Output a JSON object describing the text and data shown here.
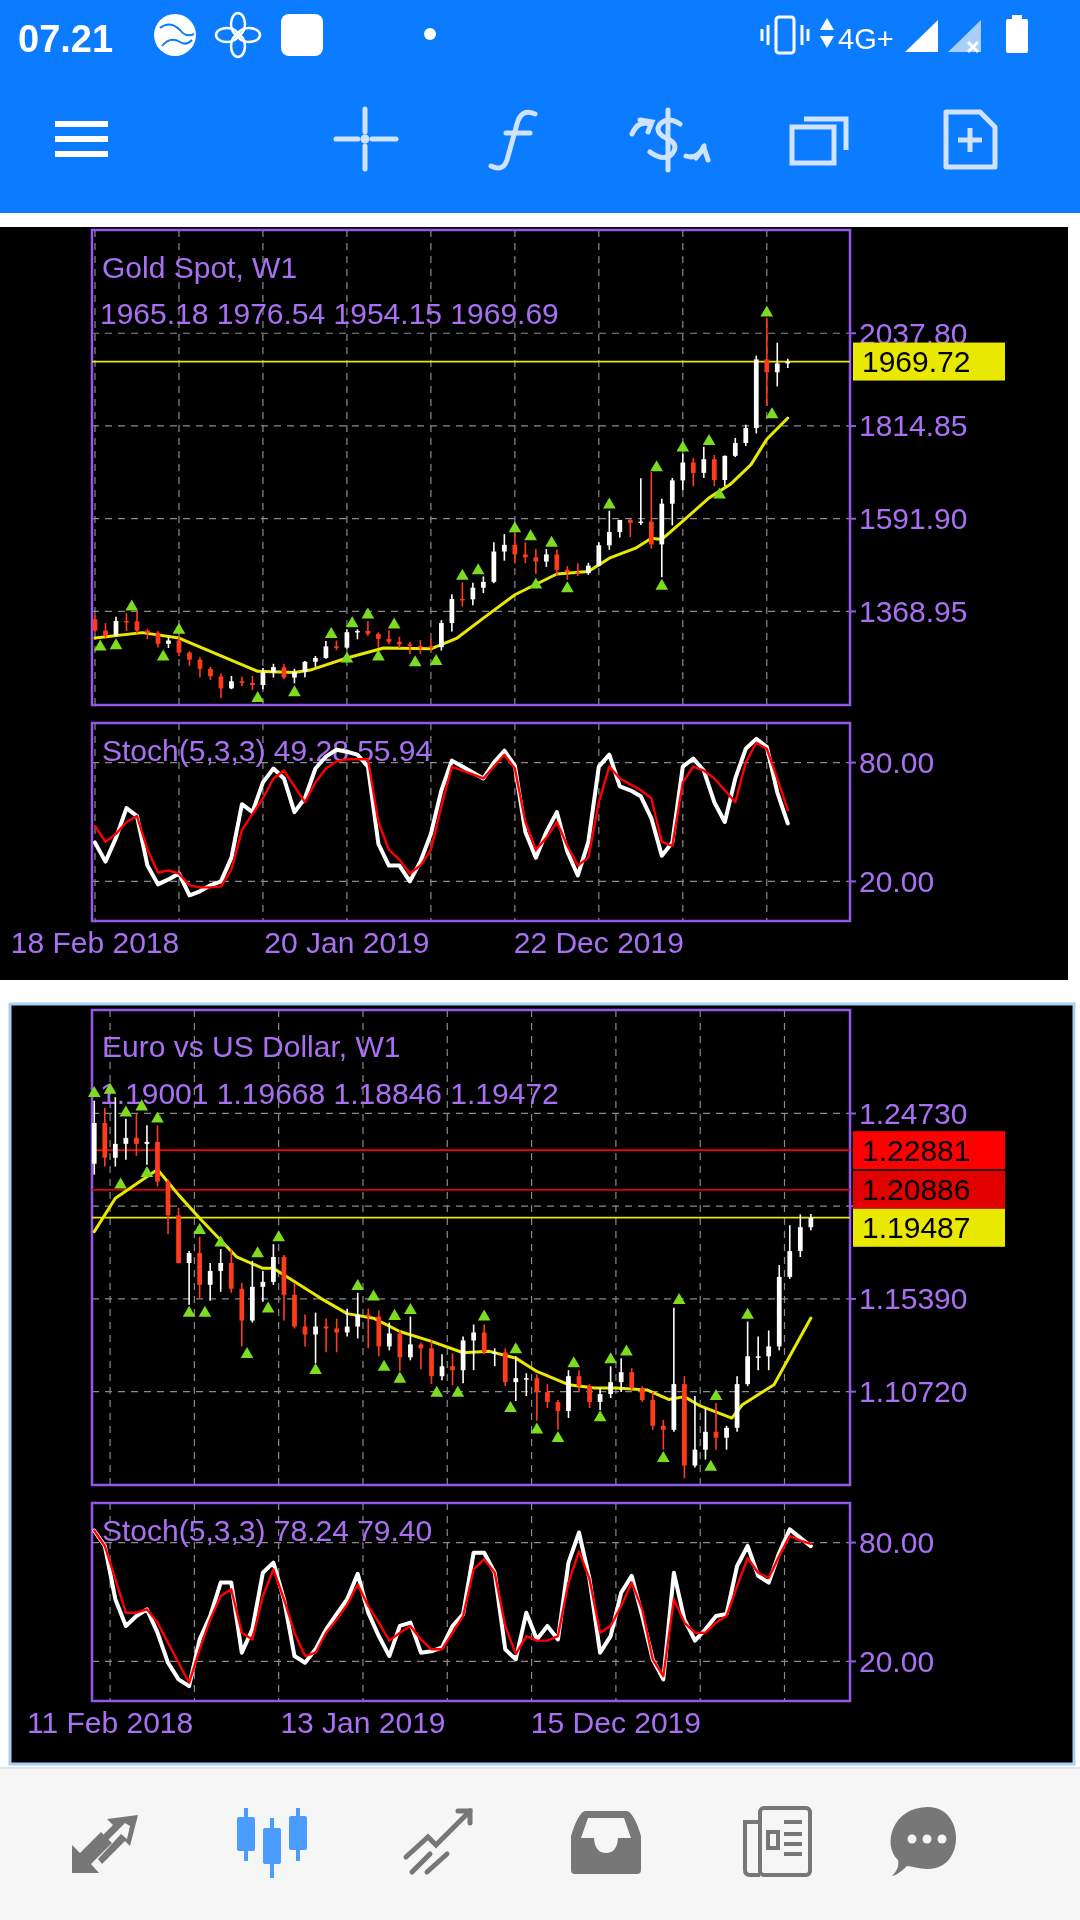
{
  "chart_data": [
    {
      "type": "candlestick",
      "title": "Gold Spot, W1",
      "subtitle": "1965.18 1976.54 1954.15 1969.69",
      "annotations": [
        "07.21",
        "4G+"
      ],
      "x": [
        "2018-02-18",
        "2018-03-04",
        "2018-03-18",
        "2018-04-01",
        "2018-04-15",
        "2018-04-29",
        "2018-05-13",
        "2018-05-27",
        "2018-06-10",
        "2018-06-24",
        "2018-07-08",
        "2018-07-22",
        "2018-08-05",
        "2018-08-19",
        "2018-09-02",
        "2018-09-16",
        "2018-09-30",
        "2018-10-14",
        "2018-10-28",
        "2018-11-11",
        "2018-11-25",
        "2018-12-09",
        "2018-12-23",
        "2019-01-06",
        "2019-01-20",
        "2019-02-03",
        "2019-02-17",
        "2019-03-03",
        "2019-03-17",
        "2019-03-31",
        "2019-04-14",
        "2019-04-28",
        "2019-05-12",
        "2019-05-26",
        "2019-06-09",
        "2019-06-23",
        "2019-07-07",
        "2019-07-21",
        "2019-08-04",
        "2019-08-18",
        "2019-09-01",
        "2019-09-15",
        "2019-09-29",
        "2019-10-13",
        "2019-10-27",
        "2019-11-10",
        "2019-11-24",
        "2019-12-08",
        "2019-12-22",
        "2020-01-05",
        "2020-01-19",
        "2020-02-02",
        "2020-02-16",
        "2020-03-01",
        "2020-03-15",
        "2020-03-29",
        "2020-04-12",
        "2020-04-26",
        "2020-05-10",
        "2020-05-24",
        "2020-06-07",
        "2020-06-21",
        "2020-07-05",
        "2020-07-19",
        "2020-08-02",
        "2020-08-16",
        "2020-08-30"
      ],
      "ohlc": [
        [
          1350,
          1362,
          1318,
          1323
        ],
        [
          1323,
          1341,
          1303,
          1311
        ],
        [
          1311,
          1356,
          1310,
          1346
        ],
        [
          1346,
          1365,
          1322,
          1345
        ],
        [
          1345,
          1369,
          1316,
          1323
        ],
        [
          1323,
          1327,
          1302,
          1318
        ],
        [
          1318,
          1322,
          1282,
          1291
        ],
        [
          1291,
          1308,
          1281,
          1299
        ],
        [
          1299,
          1309,
          1262,
          1270
        ],
        [
          1270,
          1273,
          1238,
          1253
        ],
        [
          1253,
          1259,
          1210,
          1231
        ],
        [
          1231,
          1236,
          1204,
          1213
        ],
        [
          1213,
          1220,
          1160,
          1184
        ],
        [
          1184,
          1214,
          1182,
          1201
        ],
        [
          1201,
          1212,
          1189,
          1197
        ],
        [
          1197,
          1214,
          1180,
          1192
        ],
        [
          1192,
          1233,
          1182,
          1222
        ],
        [
          1222,
          1243,
          1210,
          1235
        ],
        [
          1235,
          1243,
          1206,
          1210
        ],
        [
          1210,
          1231,
          1196,
          1223
        ],
        [
          1223,
          1250,
          1211,
          1248
        ],
        [
          1248,
          1262,
          1236,
          1257
        ],
        [
          1257,
          1298,
          1255,
          1285
        ],
        [
          1285,
          1299,
          1276,
          1282
        ],
        [
          1282,
          1326,
          1279,
          1319
        ],
        [
          1319,
          1326,
          1302,
          1322
        ],
        [
          1322,
          1346,
          1310,
          1315
        ],
        [
          1315,
          1319,
          1281,
          1303
        ],
        [
          1303,
          1324,
          1290,
          1296
        ],
        [
          1296,
          1308,
          1281,
          1290
        ],
        [
          1290,
          1296,
          1266,
          1286
        ],
        [
          1286,
          1300,
          1267,
          1285
        ],
        [
          1285,
          1304,
          1274,
          1283
        ],
        [
          1283,
          1348,
          1275,
          1341
        ],
        [
          1341,
          1410,
          1321,
          1399
        ],
        [
          1399,
          1439,
          1381,
          1398
        ],
        [
          1398,
          1438,
          1384,
          1426
        ],
        [
          1426,
          1453,
          1413,
          1440
        ],
        [
          1440,
          1535,
          1437,
          1513
        ],
        [
          1513,
          1555,
          1491,
          1529
        ],
        [
          1529,
          1557,
          1484,
          1506
        ],
        [
          1506,
          1535,
          1485,
          1499
        ],
        [
          1499,
          1519,
          1459,
          1489
        ],
        [
          1489,
          1519,
          1476,
          1506
        ],
        [
          1506,
          1518,
          1456,
          1469
        ],
        [
          1469,
          1478,
          1445,
          1463
        ],
        [
          1463,
          1485,
          1454,
          1461
        ],
        [
          1461,
          1486,
          1457,
          1479
        ],
        [
          1479,
          1535,
          1477,
          1528
        ],
        [
          1528,
          1611,
          1517,
          1560
        ],
        [
          1560,
          1589,
          1547,
          1589
        ],
        [
          1589,
          1591,
          1548,
          1582
        ],
        [
          1582,
          1689,
          1577,
          1585
        ],
        [
          1585,
          1704,
          1520,
          1530
        ],
        [
          1530,
          1640,
          1451,
          1628
        ],
        [
          1628,
          1690,
          1576,
          1684
        ],
        [
          1684,
          1748,
          1661,
          1727
        ],
        [
          1727,
          1738,
          1670,
          1702
        ],
        [
          1702,
          1765,
          1690,
          1735
        ],
        [
          1735,
          1745,
          1670,
          1685
        ],
        [
          1685,
          1744,
          1670,
          1743
        ],
        [
          1743,
          1786,
          1740,
          1774
        ],
        [
          1774,
          1818,
          1767,
          1810
        ],
        [
          1810,
          1984,
          1797,
          1975
        ],
        [
          1975,
          2075,
          1863,
          1944
        ],
        [
          1944,
          2015,
          1910,
          1965.18
        ],
        [
          1965.18,
          1976.54,
          1954.15,
          1969.69
        ]
      ],
      "colors": [
        "#ff3b1c",
        "#ff3b1c",
        "#ffffff",
        "#ff3b1c",
        "#ff3b1c",
        "#ff3b1c",
        "#ff3b1c",
        "#ffffff",
        "#ff3b1c",
        "#ff3b1c",
        "#ff3b1c",
        "#ff3b1c",
        "#ff3b1c",
        "#ffffff",
        "#ff3b1c",
        "#ff3b1c",
        "#ffffff",
        "#ffffff",
        "#ff3b1c",
        "#ffffff",
        "#ffffff",
        "#ffffff",
        "#ffffff",
        "#ff3b1c",
        "#ffffff",
        "#ffffff",
        "#ff3b1c",
        "#ff3b1c",
        "#ff3b1c",
        "#ff3b1c",
        "#ff3b1c",
        "#ff3b1c",
        "#ff3b1c",
        "#ffffff",
        "#ffffff",
        "#ff3b1c",
        "#ffffff",
        "#ffffff",
        "#ffffff",
        "#ffffff",
        "#ff3b1c",
        "#ff3b1c",
        "#ff3b1c",
        "#ffffff",
        "#ff3b1c",
        "#ff3b1c",
        "#ff3b1c",
        "#ffffff",
        "#ffffff",
        "#ffffff",
        "#ffffff",
        "#ff3b1c",
        "#ffffff",
        "#ff3b1c",
        "#ffffff",
        "#ffffff",
        "#ffffff",
        "#ff3b1c",
        "#ffffff",
        "#ff3b1c",
        "#ffffff",
        "#ffffff",
        "#ffffff",
        "#ffffff",
        "#ff3b1c",
        "#ffffff",
        "#ffffff"
      ],
      "series": [
        {
          "type": "line",
          "color": "#e8e800",
          "x": [
            "2018-02-18",
            "2018-04-22",
            "2018-06-10",
            "2018-09-23",
            "2018-11-11",
            "2018-12-02",
            "2019-01-20",
            "2019-03-10",
            "2019-05-12",
            "2019-06-16",
            "2019-07-21",
            "2019-09-01",
            "2019-10-27",
            "2019-12-08",
            "2020-01-05",
            "2020-02-09",
            "2020-03-01",
            "2020-03-15",
            "2020-04-12",
            "2020-05-17",
            "2020-06-14",
            "2020-07-12",
            "2020-08-02",
            "2020-08-30"
          ],
          "values": [
            1305,
            1318,
            1305,
            1225,
            1222,
            1228,
            1257,
            1281,
            1279,
            1305,
            1353,
            1409,
            1459,
            1465,
            1497,
            1521,
            1545,
            1542,
            1586,
            1642,
            1674,
            1722,
            1783,
            1834
          ]
        },
        {
          "type": "scatter",
          "marker": "triangle",
          "color": "#7ddc1f",
          "x": [
            "2018-02-25",
            "2018-03-18",
            "2018-04-08",
            "2018-05-20",
            "2018-06-10",
            "2018-09-23",
            "2018-11-11",
            "2018-12-30",
            "2019-01-20",
            "2019-01-27",
            "2019-02-17",
            "2019-03-03",
            "2019-03-24",
            "2019-04-21",
            "2019-05-19",
            "2019-06-23",
            "2019-07-14",
            "2019-09-01",
            "2019-09-22",
            "2019-09-29",
            "2019-10-20",
            "2019-11-10",
            "2020-01-05",
            "2020-03-08",
            "2020-03-15",
            "2020-04-12",
            "2020-05-17",
            "2020-05-31",
            "2020-08-02",
            "2020-08-09"
          ],
          "values": [
            1284,
            1287,
            1380,
            1260,
            1324,
            1160,
            1174,
            1314,
            1255,
            1340,
            1361,
            1260,
            1337,
            1246,
            1249,
            1454,
            1467,
            1568,
            1549,
            1433,
            1533,
            1424,
            1625,
            1715,
            1430,
            1762,
            1778,
            1649,
            2087,
            1842
          ]
        }
      ],
      "xlim": [
        "2018-02-14",
        "2020-11-21"
      ],
      "xticks": [
        {
          "value": "2018-02-18",
          "label": null
        },
        {
          "value": "2018-06-10",
          "label": null
        },
        {
          "value": "2018-09-30",
          "label": null
        },
        {
          "value": "2019-01-20",
          "label": null
        },
        {
          "value": "2019-05-12",
          "label": null
        },
        {
          "value": "2019-09-01",
          "label": null
        },
        {
          "value": "2019-12-22",
          "label": null
        },
        {
          "value": "2020-04-12",
          "label": null
        },
        {
          "value": "2020-08-02",
          "label": null
        }
      ],
      "ylim": [
        1144,
        2286
      ],
      "yticks": [
        {
          "value": 1368.95,
          "label": "1368.95"
        },
        {
          "value": 1591.9,
          "label": "1591.90"
        },
        {
          "value": 1814.85,
          "label": "1814.85"
        },
        {
          "value": 2037.8,
          "label": "2037.80"
        }
      ],
      "ref_lines": [
        {
          "axis": "y",
          "value": 1969.72,
          "label": "1969.72",
          "color": "#e8e800"
        }
      ],
      "grid": true,
      "tick_labels": "y"
    },
    {
      "type": "line",
      "title": "Stoch(5,3,3) 49.28 55.94",
      "x": [
        "2018-02-18",
        "2018-03-04",
        "2018-03-18",
        "2018-04-01",
        "2018-04-15",
        "2018-04-29",
        "2018-05-13",
        "2018-05-27",
        "2018-06-10",
        "2018-06-24",
        "2018-07-08",
        "2018-07-22",
        "2018-08-05",
        "2018-08-19",
        "2018-09-02",
        "2018-09-16",
        "2018-09-30",
        "2018-10-14",
        "2018-10-28",
        "2018-11-11",
        "2018-11-25",
        "2018-12-09",
        "2018-12-23",
        "2019-01-06",
        "2019-01-20",
        "2019-02-03",
        "2019-02-17",
        "2019-03-03",
        "2019-03-17",
        "2019-03-31",
        "2019-04-14",
        "2019-04-28",
        "2019-05-12",
        "2019-05-26",
        "2019-06-09",
        "2019-06-23",
        "2019-07-07",
        "2019-07-21",
        "2019-08-04",
        "2019-08-18",
        "2019-09-01",
        "2019-09-15",
        "2019-09-29",
        "2019-10-13",
        "2019-10-27",
        "2019-11-10",
        "2019-11-24",
        "2019-12-08",
        "2019-12-22",
        "2020-01-05",
        "2020-01-19",
        "2020-02-02",
        "2020-02-16",
        "2020-03-01",
        "2020-03-15",
        "2020-03-29",
        "2020-04-12",
        "2020-04-26",
        "2020-05-10",
        "2020-05-24",
        "2020-06-07",
        "2020-06-21",
        "2020-07-05",
        "2020-07-19",
        "2020-08-02",
        "2020-08-16",
        "2020-08-30"
      ],
      "series": [
        {
          "color": "#ffffff",
          "values": [
            39.6,
            30,
            42,
            57,
            53,
            28,
            18.5,
            21,
            24,
            13,
            15,
            18,
            20,
            32,
            59,
            55,
            70,
            77,
            72,
            55,
            62,
            77,
            83,
            86.5,
            85.5,
            84,
            78,
            39,
            28,
            28,
            20,
            30,
            44,
            66,
            81,
            78,
            75,
            72,
            80,
            86,
            78.5,
            45,
            32,
            45,
            55,
            35,
            23,
            40,
            78,
            84,
            68,
            66,
            63,
            52,
            33,
            39.6,
            78,
            82,
            76,
            60,
            50,
            72,
            87,
            92,
            88,
            65,
            49.28
          ]
        },
        {
          "color": "#ff0000",
          "values": [
            48,
            40,
            44,
            50,
            53,
            36,
            24.5,
            25.5,
            24,
            18,
            17,
            17,
            17.5,
            26,
            46,
            54,
            62,
            72,
            76,
            68,
            60,
            70,
            77,
            80.5,
            81.7,
            81.7,
            81.7,
            50,
            36,
            31,
            24,
            28,
            36,
            58,
            78,
            76,
            74,
            72,
            78,
            84,
            77,
            50,
            36,
            42,
            50,
            38,
            28,
            32,
            60,
            78,
            72,
            69,
            66,
            62,
            40,
            38,
            70,
            78,
            76,
            72,
            66,
            60,
            80,
            90,
            87,
            72,
            55.94
          ]
        }
      ],
      "xlim": [
        "2018-02-14",
        "2020-11-21"
      ],
      "xticks": [
        {
          "value": "2018-02-18",
          "label": "18 Feb 2018"
        },
        {
          "value": "2018-06-10",
          "label": null
        },
        {
          "value": "2018-09-30",
          "label": null
        },
        {
          "value": "2019-01-20",
          "label": "20 Jan 2019"
        },
        {
          "value": "2019-05-12",
          "label": null
        },
        {
          "value": "2019-09-01",
          "label": null
        },
        {
          "value": "2019-12-22",
          "label": "22 Dec 2019"
        },
        {
          "value": "2020-04-12",
          "label": null
        },
        {
          "value": "2020-08-02",
          "label": null
        }
      ],
      "ylim": [
        0,
        100
      ],
      "yticks": [
        {
          "value": 80,
          "label": "80.00"
        },
        {
          "value": 20,
          "label": "20.00"
        }
      ],
      "grid": true
    },
    {
      "type": "candlestick",
      "title": "Euro vs US Dollar, W1",
      "subtitle": "1.19001 1.19668 1.18846 1.19472",
      "x": [
        "2018-01-21",
        "2018-02-04",
        "2018-02-18",
        "2018-03-04",
        "2018-03-18",
        "2018-04-01",
        "2018-04-15",
        "2018-04-29",
        "2018-05-13",
        "2018-05-27",
        "2018-06-10",
        "2018-06-24",
        "2018-07-08",
        "2018-07-22",
        "2018-08-05",
        "2018-08-19",
        "2018-09-02",
        "2018-09-16",
        "2018-09-30",
        "2018-10-14",
        "2018-10-28",
        "2018-11-11",
        "2018-11-25",
        "2018-12-09",
        "2018-12-23",
        "2019-01-06",
        "2019-01-20",
        "2019-02-03",
        "2019-02-17",
        "2019-03-03",
        "2019-03-17",
        "2019-03-31",
        "2019-04-14",
        "2019-04-28",
        "2019-05-12",
        "2019-05-26",
        "2019-06-09",
        "2019-06-23",
        "2019-07-07",
        "2019-07-21",
        "2019-08-04",
        "2019-08-18",
        "2019-09-01",
        "2019-09-15",
        "2019-09-29",
        "2019-10-13",
        "2019-10-27",
        "2019-11-10",
        "2019-11-24",
        "2019-12-08",
        "2019-12-22",
        "2020-01-05",
        "2020-01-19",
        "2020-02-02",
        "2020-02-16",
        "2020-03-01",
        "2020-03-15",
        "2020-03-29",
        "2020-04-12",
        "2020-04-26",
        "2020-05-10",
        "2020-05-24",
        "2020-06-07",
        "2020-06-21",
        "2020-07-05",
        "2020-07-19",
        "2020-08-02",
        "2020-08-16",
        "2020-08-30"
      ],
      "ohlc": [
        [
          1.222,
          1.2537,
          1.2165,
          1.2425
        ],
        [
          1.2425,
          1.25,
          1.2206,
          1.225
        ],
        [
          1.225,
          1.2555,
          1.2206,
          1.232
        ],
        [
          1.232,
          1.2446,
          1.224,
          1.235
        ],
        [
          1.235,
          1.2476,
          1.226,
          1.232
        ],
        [
          1.232,
          1.2414,
          1.2215,
          1.233
        ],
        [
          1.233,
          1.2413,
          1.2105,
          1.213
        ],
        [
          1.213,
          1.214,
          1.1865,
          1.196
        ],
        [
          1.196,
          1.1997,
          1.1718,
          1.172
        ],
        [
          1.172,
          1.178,
          1.151,
          1.177
        ],
        [
          1.177,
          1.1852,
          1.154,
          1.161
        ],
        [
          1.161,
          1.172,
          1.153,
          1.168
        ],
        [
          1.168,
          1.179,
          1.1575,
          1.172
        ],
        [
          1.172,
          1.179,
          1.157,
          1.159
        ],
        [
          1.159,
          1.162,
          1.13,
          1.143
        ],
        [
          1.143,
          1.173,
          1.142,
          1.16
        ],
        [
          1.16,
          1.168,
          1.1525,
          1.1625
        ],
        [
          1.1625,
          1.1815,
          1.161,
          1.175
        ],
        [
          1.175,
          1.176,
          1.143,
          1.156
        ],
        [
          1.156,
          1.162,
          1.139,
          1.14
        ],
        [
          1.14,
          1.146,
          1.13,
          1.136
        ],
        [
          1.136,
          1.147,
          1.1215,
          1.14
        ],
        [
          1.14,
          1.144,
          1.127,
          1.139
        ],
        [
          1.139,
          1.144,
          1.127,
          1.137
        ],
        [
          1.137,
          1.149,
          1.135,
          1.14
        ],
        [
          1.14,
          1.157,
          1.134,
          1.146
        ],
        [
          1.146,
          1.149,
          1.129,
          1.145
        ],
        [
          1.145,
          1.148,
          1.125,
          1.13
        ],
        [
          1.13,
          1.142,
          1.128,
          1.1365
        ],
        [
          1.1365,
          1.138,
          1.1175,
          1.1245
        ],
        [
          1.1245,
          1.145,
          1.123,
          1.131
        ],
        [
          1.131,
          1.132,
          1.1185,
          1.129
        ],
        [
          1.129,
          1.133,
          1.111,
          1.115
        ],
        [
          1.115,
          1.126,
          1.113,
          1.12
        ],
        [
          1.12,
          1.1265,
          1.1105,
          1.118
        ],
        [
          1.118,
          1.135,
          1.1115,
          1.133
        ],
        [
          1.133,
          1.141,
          1.118,
          1.137
        ],
        [
          1.137,
          1.141,
          1.126,
          1.127
        ],
        [
          1.127,
          1.129,
          1.12,
          1.127
        ],
        [
          1.127,
          1.129,
          1.11,
          1.112
        ],
        [
          1.112,
          1.125,
          1.1025,
          1.114
        ],
        [
          1.114,
          1.1165,
          1.105,
          1.114
        ],
        [
          1.114,
          1.116,
          1.0925,
          1.107
        ],
        [
          1.107,
          1.111,
          1.099,
          1.102
        ],
        [
          1.102,
          1.103,
          1.088,
          1.0975
        ],
        [
          1.0975,
          1.118,
          1.094,
          1.115
        ],
        [
          1.115,
          1.118,
          1.107,
          1.11
        ],
        [
          1.11,
          1.111,
          1.099,
          1.102
        ],
        [
          1.102,
          1.109,
          1.098,
          1.106
        ],
        [
          1.106,
          1.12,
          1.104,
          1.112
        ],
        [
          1.112,
          1.124,
          1.107,
          1.117
        ],
        [
          1.117,
          1.119,
          1.108,
          1.109
        ],
        [
          1.109,
          1.11,
          1.102,
          1.103
        ],
        [
          1.103,
          1.107,
          1.088,
          1.09
        ],
        [
          1.09,
          1.093,
          1.078,
          1.088
        ],
        [
          1.088,
          1.1495,
          1.087,
          1.111
        ],
        [
          1.111,
          1.115,
          1.0636,
          1.07
        ],
        [
          1.07,
          1.105,
          1.069,
          1.078
        ],
        [
          1.078,
          1.099,
          1.073,
          1.087
        ],
        [
          1.087,
          1.1015,
          1.078,
          1.084
        ],
        [
          1.084,
          1.09,
          1.078,
          1.089
        ],
        [
          1.089,
          1.115,
          1.087,
          1.111
        ],
        [
          1.111,
          1.1425,
          1.11,
          1.125
        ],
        [
          1.125,
          1.135,
          1.118,
          1.125
        ],
        [
          1.125,
          1.138,
          1.118,
          1.13
        ],
        [
          1.13,
          1.171,
          1.128,
          1.165
        ],
        [
          1.165,
          1.191,
          1.164,
          1.178
        ],
        [
          1.178,
          1.1965,
          1.175,
          1.19
        ],
        [
          1.19001,
          1.19668,
          1.18846,
          1.19472
        ]
      ],
      "colors": [
        "#ffffff",
        "#ff3b1c",
        "#ffffff",
        "#ffffff",
        "#ff3b1c",
        "#ffffff",
        "#ff3b1c",
        "#ff3b1c",
        "#ff3b1c",
        "#ffffff",
        "#ff3b1c",
        "#ffffff",
        "#ffffff",
        "#ff3b1c",
        "#ff3b1c",
        "#ffffff",
        "#ffffff",
        "#ffffff",
        "#ff3b1c",
        "#ff3b1c",
        "#ff3b1c",
        "#ffffff",
        "#ff3b1c",
        "#ff3b1c",
        "#ffffff",
        "#ffffff",
        "#ff3b1c",
        "#ff3b1c",
        "#ffffff",
        "#ff3b1c",
        "#ffffff",
        "#ff3b1c",
        "#ff3b1c",
        "#ffffff",
        "#ff3b1c",
        "#ffffff",
        "#ffffff",
        "#ff3b1c",
        "#ffffff",
        "#ff3b1c",
        "#ffffff",
        "#ffffff",
        "#ff3b1c",
        "#ff3b1c",
        "#ff3b1c",
        "#ffffff",
        "#ff3b1c",
        "#ff3b1c",
        "#ffffff",
        "#ffffff",
        "#ffffff",
        "#ff3b1c",
        "#ff3b1c",
        "#ff3b1c",
        "#ff3b1c",
        "#ffffff",
        "#ff3b1c",
        "#ffffff",
        "#ffffff",
        "#ff3b1c",
        "#ffffff",
        "#ffffff",
        "#ffffff",
        "#ffffff",
        "#ffffff",
        "#ffffff",
        "#ffffff",
        "#ffffff",
        "#ffffff"
      ],
      "series": [
        {
          "type": "line",
          "color": "#e8e800",
          "x": [
            "2018-01-21",
            "2018-02-18",
            "2018-04-15",
            "2018-05-13",
            "2018-06-10",
            "2018-07-29",
            "2018-09-02",
            "2018-09-16",
            "2018-10-07",
            "2018-11-18",
            "2018-12-23",
            "2019-01-27",
            "2019-03-03",
            "2019-04-14",
            "2019-05-26",
            "2019-06-30",
            "2019-08-04",
            "2019-09-01",
            "2019-10-13",
            "2019-11-17",
            "2019-12-15",
            "2020-01-26",
            "2020-02-23",
            "2020-03-15",
            "2020-04-05",
            "2020-05-17",
            "2020-05-31",
            "2020-07-12",
            "2020-08-30"
          ],
          "values": [
            1.1878,
            1.2046,
            1.2191,
            1.2063,
            1.1945,
            1.1751,
            1.1693,
            1.1693,
            1.1643,
            1.1542,
            1.1465,
            1.1442,
            1.1375,
            1.1325,
            1.1268,
            1.1275,
            1.1241,
            1.1174,
            1.1107,
            1.109,
            1.109,
            1.108,
            1.1033,
            1.1047,
            1.1,
            1.0939,
            1.1006,
            1.1107,
            1.1443
          ]
        },
        {
          "type": "scatter",
          "marker": "triangle",
          "color": "#7ddc1f",
          "x": [
            "2018-01-21",
            "2018-02-11",
            "2018-02-25",
            "2018-03-04",
            "2018-03-25",
            "2018-04-01",
            "2018-04-15",
            "2018-05-27",
            "2018-06-10",
            "2018-06-17",
            "2018-07-08",
            "2018-08-12",
            "2018-08-26",
            "2018-09-09",
            "2018-09-23",
            "2018-11-11",
            "2019-01-06",
            "2019-01-27",
            "2019-02-10",
            "2019-02-24",
            "2019-03-03",
            "2019-03-17",
            "2019-04-21",
            "2019-05-19",
            "2019-06-23",
            "2019-07-28",
            "2019-08-04",
            "2019-09-01",
            "2019-09-29",
            "2019-10-20",
            "2019-11-24",
            "2019-12-08",
            "2019-12-29",
            "2020-02-16",
            "2020-03-08",
            "2020-04-19",
            "2020-04-26",
            "2020-06-07"
          ],
          "values": [
            1.2574,
            1.2591,
            1.2113,
            1.2476,
            1.2507,
            1.2171,
            1.2446,
            1.1468,
            1.1885,
            1.1468,
            1.1821,
            1.126,
            1.1767,
            1.1489,
            1.1848,
            1.1179,
            1.1603,
            1.1549,
            1.1196,
            1.1452,
            1.1136,
            1.1482,
            1.1065,
            1.1065,
            1.1449,
            1.0988,
            1.1284,
            1.088,
            1.0837,
            1.1213,
            1.0941,
            1.1233,
            1.1273,
            1.0736,
            1.1532,
            1.0692,
            1.1048,
            1.1458
          ]
        }
      ],
      "xlim": [
        "2018-01-18",
        "2020-10-21"
      ],
      "xticks": [
        {
          "value": "2018-02-11",
          "label": null
        },
        {
          "value": "2018-06-03",
          "label": null
        },
        {
          "value": "2018-09-23",
          "label": null
        },
        {
          "value": "2019-01-13",
          "label": null
        },
        {
          "value": "2019-05-05",
          "label": null
        },
        {
          "value": "2019-08-25",
          "label": null
        },
        {
          "value": "2019-12-15",
          "label": null
        },
        {
          "value": "2020-04-05",
          "label": null
        },
        {
          "value": "2020-07-26",
          "label": null
        }
      ],
      "ylim": [
        1.0602,
        1.2994
      ],
      "yticks": [
        {
          "value": 1.1072,
          "label": "1.10720"
        },
        {
          "value": 1.1539,
          "label": "1.15390"
        },
        {
          "value": 1.2006,
          "label": null
        },
        {
          "value": 1.2473,
          "label": "1.24730"
        }
      ],
      "ref_lines": [
        {
          "axis": "y",
          "value": 1.22881,
          "label": "1.22881",
          "color": "#ff0000"
        },
        {
          "axis": "y",
          "value": 1.20886,
          "label": "1.20886",
          "color": "#e00000"
        },
        {
          "axis": "y",
          "value": 1.19487,
          "label": "1.19487",
          "color": "#e8e800"
        }
      ],
      "grid": true,
      "tick_labels": "y"
    },
    {
      "type": "line",
      "title": "Stoch(5,3,3) 78.24 79.40",
      "x": [
        "2018-01-21",
        "2018-02-04",
        "2018-02-18",
        "2018-03-04",
        "2018-03-18",
        "2018-04-01",
        "2018-04-15",
        "2018-04-29",
        "2018-05-13",
        "2018-05-27",
        "2018-06-10",
        "2018-06-24",
        "2018-07-08",
        "2018-07-22",
        "2018-08-05",
        "2018-08-19",
        "2018-09-02",
        "2018-09-16",
        "2018-09-30",
        "2018-10-14",
        "2018-10-28",
        "2018-11-11",
        "2018-11-25",
        "2018-12-09",
        "2018-12-23",
        "2019-01-06",
        "2019-01-20",
        "2019-02-03",
        "2019-02-17",
        "2019-03-03",
        "2019-03-17",
        "2019-03-31",
        "2019-04-14",
        "2019-04-28",
        "2019-05-12",
        "2019-05-26",
        "2019-06-09",
        "2019-06-23",
        "2019-07-07",
        "2019-07-21",
        "2019-08-04",
        "2019-08-18",
        "2019-09-01",
        "2019-09-15",
        "2019-09-29",
        "2019-10-13",
        "2019-10-27",
        "2019-11-10",
        "2019-11-24",
        "2019-12-08",
        "2019-12-22",
        "2020-01-05",
        "2020-01-19",
        "2020-02-02",
        "2020-02-16",
        "2020-03-01",
        "2020-03-15",
        "2020-03-29",
        "2020-04-12",
        "2020-04-26",
        "2020-05-10",
        "2020-05-24",
        "2020-06-07",
        "2020-06-21",
        "2020-07-05",
        "2020-07-19",
        "2020-08-02",
        "2020-08-16",
        "2020-08-30"
      ],
      "series": [
        {
          "color": "#ffffff",
          "values": [
            86.1,
            78.3,
            51.4,
            37.9,
            42.9,
            46.3,
            34.5,
            19.3,
            10.9,
            7.5,
            31.1,
            42.9,
            59.8,
            59.8,
            24.4,
            36.2,
            64.8,
            69.9,
            51.4,
            22.7,
            19.3,
            26.1,
            36.2,
            43.9,
            51.4,
            64.2,
            44.6,
            32.8,
            22.7,
            37.9,
            39.6,
            24.4,
            25.1,
            27.1,
            37.9,
            43.9,
            74.9,
            74.9,
            64.8,
            26.1,
            21,
            44.6,
            31.1,
            37.9,
            31.1,
            69.9,
            85.1,
            61.5,
            24.4,
            32.8,
            54.7,
            63.2,
            42.9,
            21,
            10.9,
            64.8,
            41.2,
            30.5,
            36.2,
            42.9,
            43.9,
            68.2,
            78.3,
            63.2,
            59.8,
            74.9,
            86.7,
            82.4,
            78.24
          ]
        },
        {
          "color": "#ff0000",
          "values": [
            86.1,
            78.3,
            61.5,
            44.6,
            44.6,
            46.3,
            39.6,
            29.4,
            19.3,
            9.2,
            26.1,
            41.2,
            53,
            56.4,
            34.5,
            31.1,
            53,
            66.5,
            51.4,
            34.5,
            22.7,
            24.4,
            34.5,
            41.2,
            48.7,
            58.8,
            48,
            39.6,
            30.5,
            34.5,
            37.9,
            31.1,
            26.1,
            26.1,
            34.5,
            42.9,
            66.5,
            71.6,
            64.8,
            37.9,
            23.7,
            32.8,
            30.5,
            30.5,
            32.8,
            59.8,
            75.6,
            61.5,
            34.5,
            37.9,
            48,
            59.8,
            46.3,
            21,
            12.6,
            51.4,
            39.6,
            34.5,
            34.5,
            39.6,
            42.9,
            58.1,
            72.2,
            64.8,
            62.1,
            73.3,
            83.4,
            81,
            79.4
          ]
        }
      ],
      "xlim": [
        "2018-01-18",
        "2020-10-21"
      ],
      "xticks": [
        {
          "value": "2018-02-11",
          "label": "11 Feb 2018"
        },
        {
          "value": "2018-06-03",
          "label": null
        },
        {
          "value": "2018-09-23",
          "label": null
        },
        {
          "value": "2019-01-13",
          "label": "13 Jan 2019"
        },
        {
          "value": "2019-05-05",
          "label": null
        },
        {
          "value": "2019-08-25",
          "label": null
        },
        {
          "value": "2019-12-15",
          "label": "15 Dec 2019"
        },
        {
          "value": "2020-04-05",
          "label": null
        },
        {
          "value": "2020-07-26",
          "label": null
        }
      ],
      "ylim": [
        0,
        100
      ],
      "yticks": [
        {
          "value": 80,
          "label": "80.00"
        },
        {
          "value": 20,
          "label": "20.00"
        }
      ],
      "grid": true
    }
  ]
}
